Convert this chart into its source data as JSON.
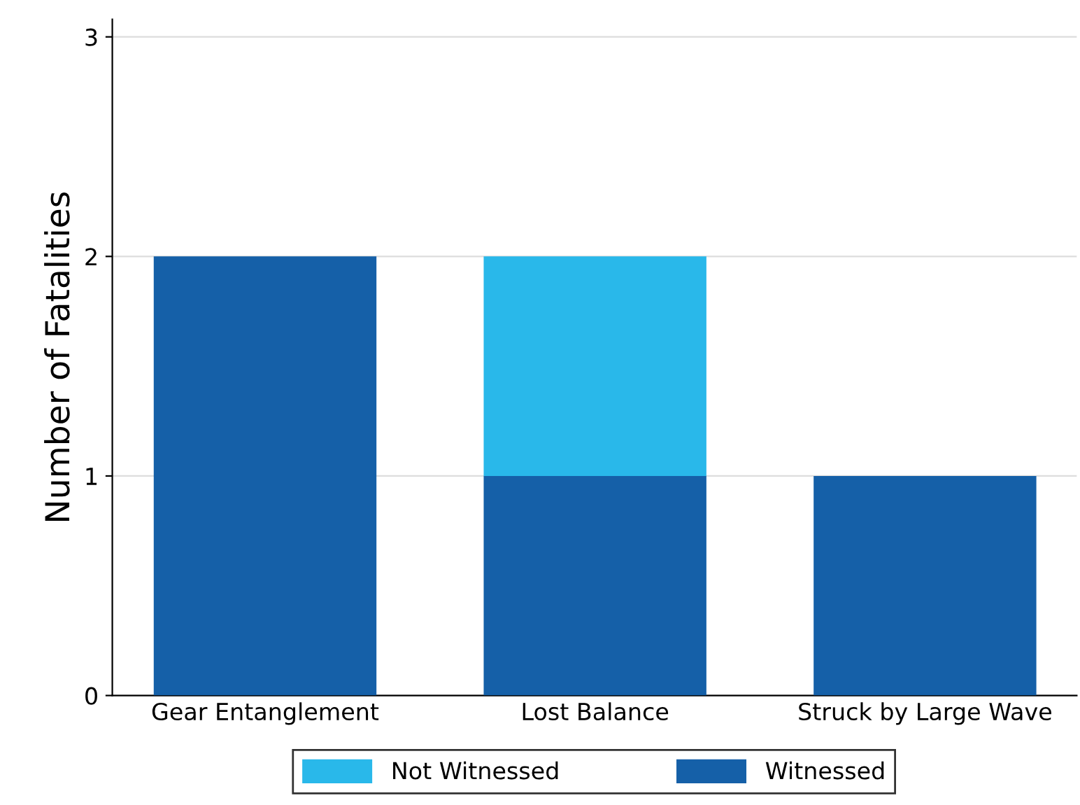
{
  "chart_data": {
    "type": "bar",
    "stacked": true,
    "ylabel": "Number of Fatalities",
    "categories": [
      "Gear Entanglement",
      "Lost Balance",
      "Struck by Large Wave"
    ],
    "series": [
      {
        "name": "Witnessed",
        "color": "#1560a8",
        "values": [
          2,
          1,
          1
        ]
      },
      {
        "name": "Not Witnessed",
        "color": "#29b8ea",
        "values": [
          0,
          1,
          0
        ]
      }
    ],
    "ylim": [
      0,
      3.08
    ],
    "yticks": [
      0,
      1,
      2,
      3
    ],
    "grid": "y",
    "legend": "bottom"
  }
}
